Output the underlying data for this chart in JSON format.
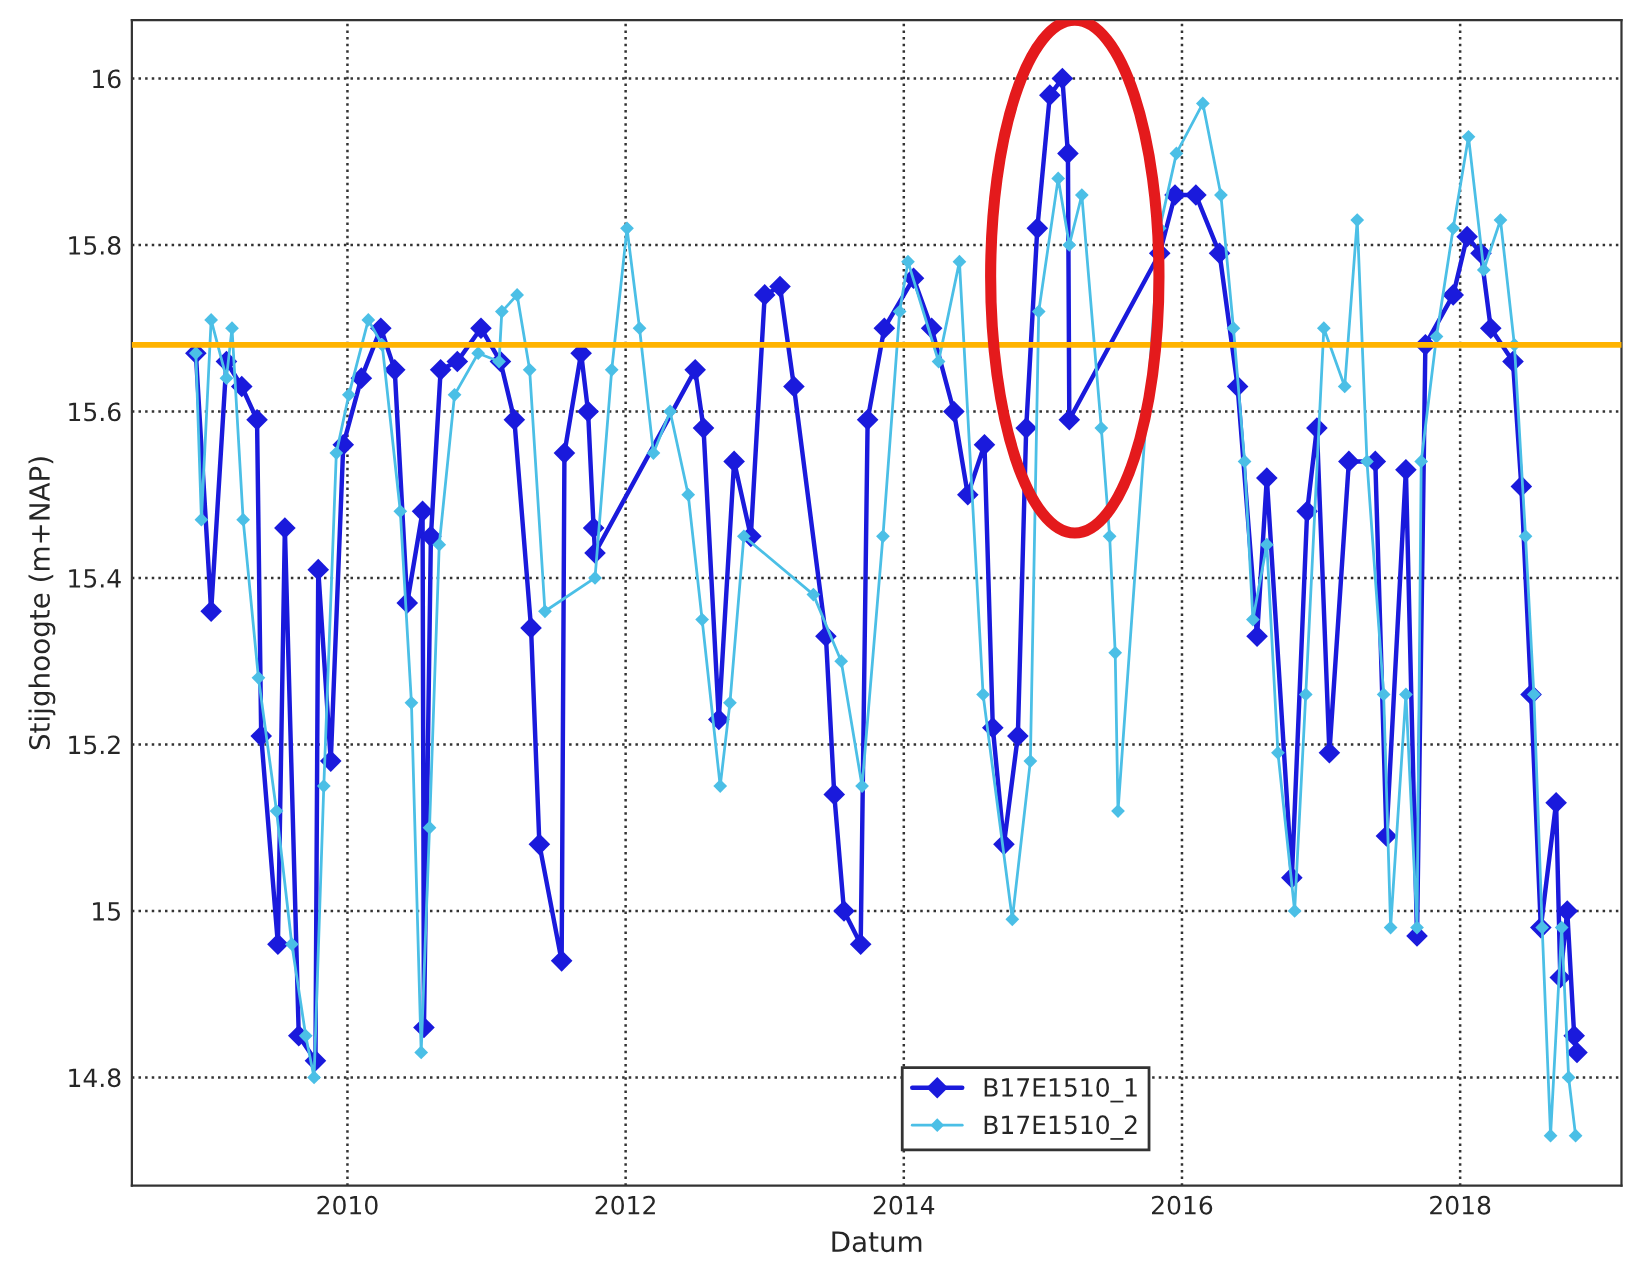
{
  "chart_data": {
    "type": "line",
    "xlabel": "Datum",
    "ylabel": "Stijghoogte (m+NAP)",
    "xlim": [
      2008.45,
      2019.16
    ],
    "xticks": [
      2010,
      2012,
      2014,
      2016,
      2018
    ],
    "ylim": [
      14.67,
      16.07
    ],
    "yticks": [
      14.8,
      15,
      15.2,
      15.4,
      15.6,
      15.8,
      16
    ],
    "grid": true,
    "legend": "bottom",
    "marker": "diamond",
    "line_style": "solid",
    "ref_lines": [
      {
        "axis": "y",
        "value": 15.68,
        "color": "#ffb300",
        "line_style": "solid"
      }
    ],
    "series": [
      {
        "name": "B17E1510_1",
        "color": "#1a1adc",
        "x": [
          2008.91,
          2009.02,
          2009.13,
          2009.24,
          2009.35,
          2009.38,
          2009.5,
          2009.55,
          2009.65,
          2009.77,
          2009.79,
          2009.88,
          2009.97,
          2010.1,
          2010.24,
          2010.34,
          2010.43,
          2010.54,
          2010.55,
          2010.6,
          2010.67,
          2010.79,
          2010.96,
          2011.1,
          2011.2,
          2011.32,
          2011.38,
          2011.54,
          2011.56,
          2011.68,
          2011.73,
          2011.77,
          2011.78,
          2012.5,
          2012.56,
          2012.67,
          2012.78,
          2012.9,
          2013.0,
          2013.11,
          2013.21,
          2013.44,
          2013.5,
          2013.57,
          2013.69,
          2013.74,
          2013.86,
          2014.07,
          2014.2,
          2014.36,
          2014.46,
          2014.58,
          2014.64,
          2014.72,
          2014.82,
          2014.88,
          2014.96,
          2015.05,
          2015.14,
          2015.18,
          2015.19,
          2015.84,
          2015.95,
          2016.1,
          2016.27,
          2016.4,
          2016.54,
          2016.61,
          2016.79,
          2016.9,
          2016.97,
          2017.06,
          2017.2,
          2017.39,
          2017.47,
          2017.61,
          2017.69,
          2017.75,
          2017.95,
          2018.05,
          2018.15,
          2018.22,
          2018.38,
          2018.44,
          2018.51,
          2018.58,
          2018.69,
          2018.72,
          2018.77,
          2018.82,
          2018.84
        ],
        "values": [
          15.67,
          15.36,
          15.66,
          15.63,
          15.59,
          15.21,
          14.96,
          15.46,
          14.85,
          14.82,
          15.41,
          15.18,
          15.56,
          15.64,
          15.7,
          15.65,
          15.37,
          15.48,
          14.86,
          15.45,
          15.65,
          15.66,
          15.7,
          15.66,
          15.59,
          15.34,
          15.08,
          14.94,
          15.55,
          15.67,
          15.6,
          15.46,
          15.43,
          15.65,
          15.58,
          15.23,
          15.54,
          15.45,
          15.74,
          15.75,
          15.63,
          15.33,
          15.14,
          15.0,
          14.96,
          15.59,
          15.7,
          15.76,
          15.7,
          15.6,
          15.5,
          15.56,
          15.22,
          15.08,
          15.21,
          15.58,
          15.82,
          15.98,
          16.0,
          15.91,
          15.59,
          15.79,
          15.86,
          15.86,
          15.79,
          15.63,
          15.33,
          15.52,
          15.04,
          15.48,
          15.58,
          15.19,
          15.54,
          15.54,
          15.09,
          15.53,
          14.97,
          15.68,
          15.74,
          15.81,
          15.79,
          15.7,
          15.66,
          15.51,
          15.26,
          14.98,
          15.13,
          14.92,
          15.0,
          14.85,
          14.83
        ]
      },
      {
        "name": "B17E1510_2",
        "color": "#4bbfe6",
        "x": [
          2008.91,
          2008.95,
          2009.02,
          2009.13,
          2009.17,
          2009.25,
          2009.36,
          2009.49,
          2009.6,
          2009.7,
          2009.76,
          2009.83,
          2009.92,
          2010.01,
          2010.15,
          2010.25,
          2010.38,
          2010.46,
          2010.53,
          2010.59,
          2010.66,
          2010.77,
          2010.94,
          2011.09,
          2011.11,
          2011.22,
          2011.31,
          2011.42,
          2011.78,
          2011.9,
          2012.01,
          2012.1,
          2012.2,
          2012.32,
          2012.45,
          2012.55,
          2012.68,
          2012.75,
          2012.85,
          2013.35,
          2013.55,
          2013.7,
          2013.85,
          2013.97,
          2014.03,
          2014.25,
          2014.4,
          2014.57,
          2014.78,
          2014.91,
          2014.97,
          2015.11,
          2015.19,
          2015.28,
          2015.42,
          2015.48,
          2015.52,
          2015.54,
          2015.84,
          2015.96,
          2016.15,
          2016.28,
          2016.37,
          2016.45,
          2016.51,
          2016.61,
          2016.69,
          2016.81,
          2016.89,
          2017.02,
          2017.17,
          2017.26,
          2017.33,
          2017.45,
          2017.5,
          2017.61,
          2017.69,
          2017.72,
          2017.83,
          2017.95,
          2018.06,
          2018.17,
          2018.29,
          2018.39,
          2018.47,
          2018.53,
          2018.59,
          2018.65,
          2018.73,
          2018.78,
          2018.83
        ],
        "values": [
          15.67,
          15.47,
          15.71,
          15.64,
          15.7,
          15.47,
          15.28,
          15.12,
          14.96,
          14.85,
          14.8,
          15.15,
          15.55,
          15.62,
          15.71,
          15.68,
          15.48,
          15.25,
          14.83,
          15.1,
          15.44,
          15.62,
          15.67,
          15.66,
          15.72,
          15.74,
          15.65,
          15.36,
          15.4,
          15.65,
          15.82,
          15.7,
          15.55,
          15.6,
          15.5,
          15.35,
          15.15,
          15.25,
          15.45,
          15.38,
          15.3,
          15.15,
          15.45,
          15.72,
          15.78,
          15.66,
          15.78,
          15.26,
          14.99,
          15.18,
          15.72,
          15.88,
          15.8,
          15.86,
          15.58,
          15.45,
          15.31,
          15.12,
          15.82,
          15.91,
          15.97,
          15.86,
          15.7,
          15.54,
          15.35,
          15.44,
          15.19,
          15.0,
          15.26,
          15.7,
          15.63,
          15.83,
          15.54,
          15.26,
          14.98,
          15.26,
          14.98,
          15.54,
          15.69,
          15.82,
          15.93,
          15.77,
          15.83,
          15.68,
          15.45,
          15.26,
          14.98,
          14.73,
          14.98,
          14.8,
          14.73
        ]
      }
    ]
  }
}
